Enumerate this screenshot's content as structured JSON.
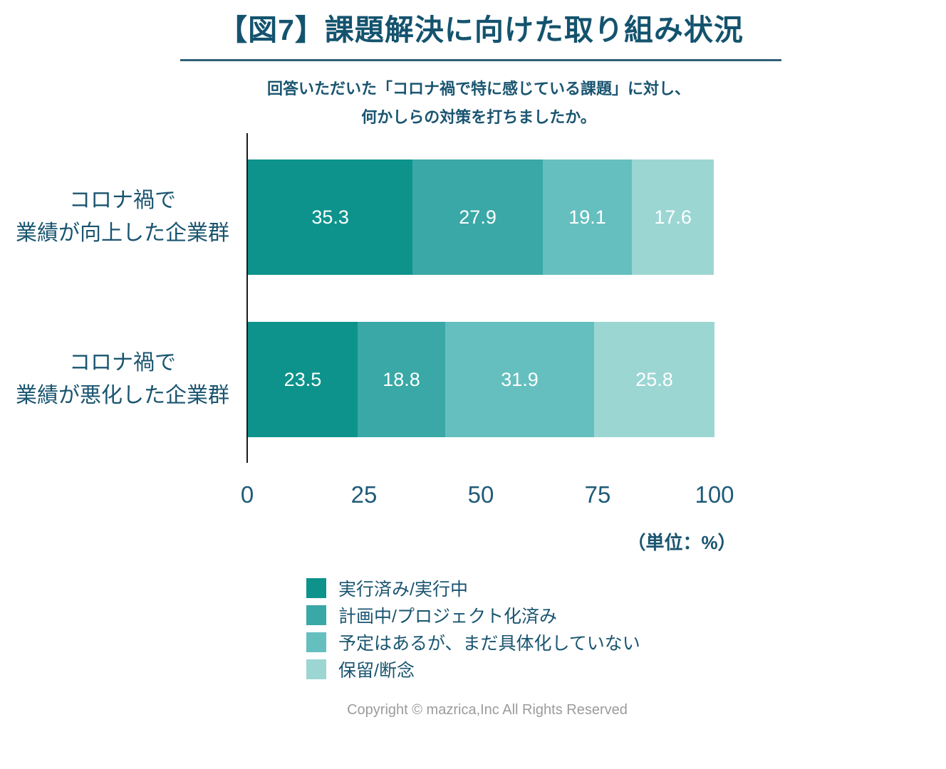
{
  "header": {
    "title": "【図7】課題解決に向けた取り組み状況"
  },
  "subtitle": {
    "line1": "回答いただいた「コロナ禍で特に感じている課題」に対し、",
    "line2": "何かしらの対策を打ちましたか。"
  },
  "unit_label": "（単位：%）",
  "footer": {
    "copyright": "Copyright © mazrica,Inc All Rights Reserved"
  },
  "colors": {
    "title_text": "#14536e",
    "body_text": "#1a5570",
    "tick_text": "#1f5b78",
    "axis_line": "#1a1a1a",
    "title_underline": "#2d6077",
    "value_label_text": "#ffffff",
    "copyright_text": "#9b9b9b"
  },
  "chart_data": {
    "type": "bar",
    "orientation": "horizontal",
    "stacked": true,
    "unit": "%",
    "xlim": [
      0,
      100
    ],
    "x_ticks": [
      "0",
      "25",
      "50",
      "75",
      "100"
    ],
    "grid": false,
    "legend_position": "bottom-left",
    "categories": [
      {
        "line1": "コロナ禍で",
        "line2": "業績が向上した企業群"
      },
      {
        "line1": "コロナ禍で",
        "line2": "業績が悪化した企業群"
      }
    ],
    "series": [
      {
        "name": "実行済み/実行中",
        "color": "#0d938c",
        "values": [
          35.3,
          23.5
        ]
      },
      {
        "name": "計画中/プロジェクト化済み",
        "color": "#3aa8a6",
        "values": [
          27.9,
          18.8
        ]
      },
      {
        "name": "予定はあるが、まだ具体化していない",
        "color": "#66bfbf",
        "values": [
          19.1,
          31.9
        ]
      },
      {
        "name": "保留/断念",
        "color": "#9cd6d3",
        "values": [
          17.6,
          25.8
        ]
      }
    ]
  }
}
